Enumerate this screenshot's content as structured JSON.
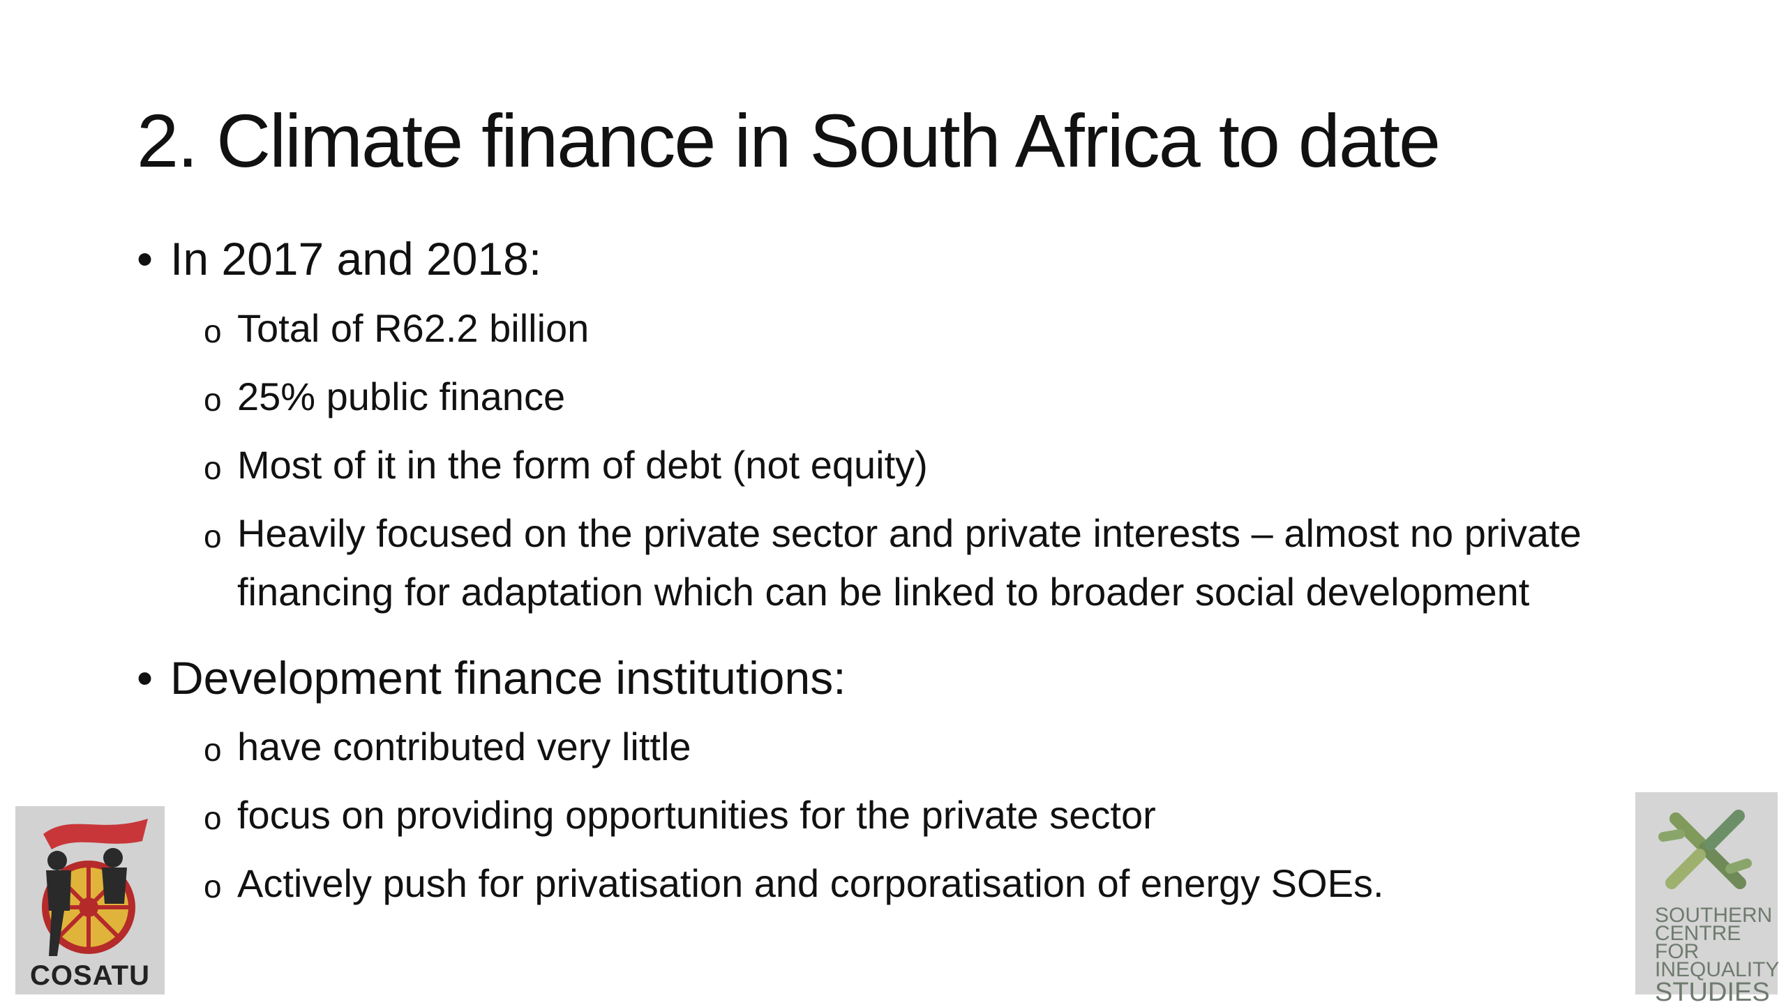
{
  "slide": {
    "title": "2. Climate finance in South Africa to date",
    "sections": [
      {
        "heading": "In 2017 and 2018:",
        "items": [
          "Total of R62.2 billion",
          "25% public finance",
          "Most of it in the form of debt (not equity)",
          "Heavily focused on the private sector and private interests – almost no private financing for adaptation which can be linked to broader social development"
        ]
      },
      {
        "heading": "Development finance institutions:",
        "items": [
          "have contributed very little",
          "focus on providing opportunities for the private sector",
          "Actively push for privatisation and corporatisation of energy SOEs."
        ]
      }
    ],
    "bullet_glyph": "•",
    "sub_bullet_glyph": "o"
  },
  "logos": {
    "left": {
      "name": "COSATU",
      "text": "COSATU",
      "accent": "#d7262c"
    },
    "right": {
      "name": "Southern Centre for Inequality Studies",
      "line1": "SOUTHERN",
      "line2": "CENTRE FOR",
      "line3": "INEQUALITY",
      "line4": "STUDIES",
      "accent": "#8aa56a"
    }
  }
}
